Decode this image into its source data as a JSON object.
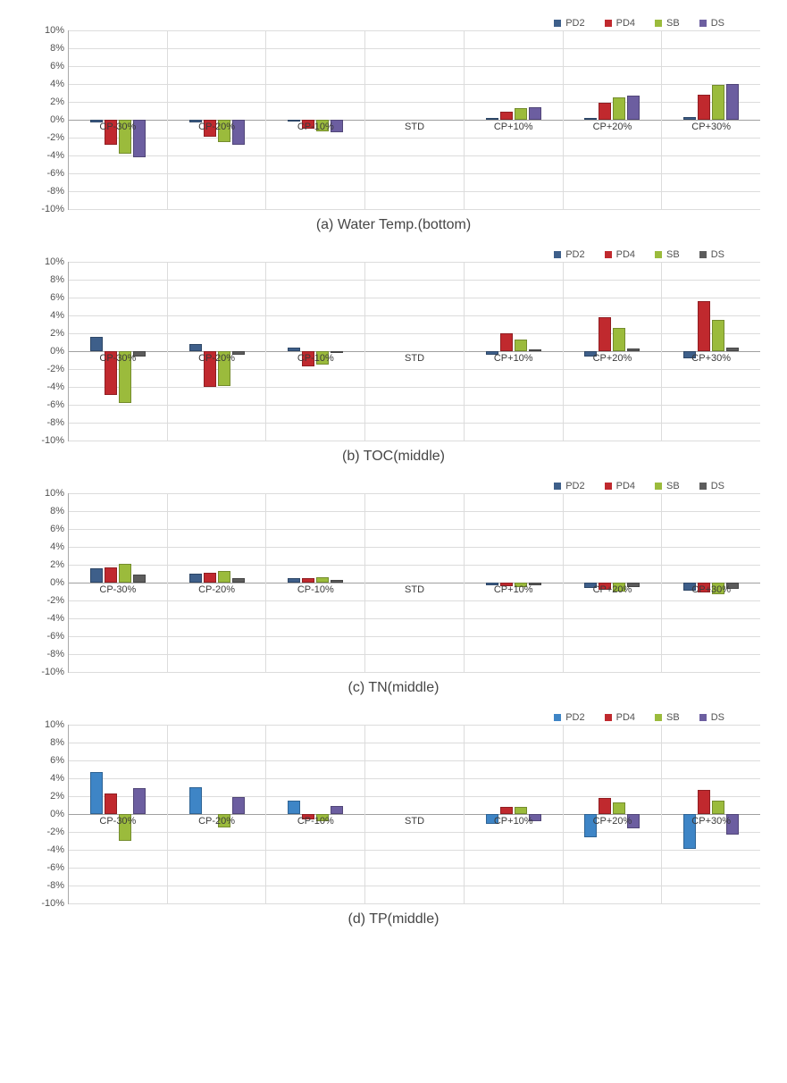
{
  "global": {
    "background_color": "#ffffff",
    "grid_color": "#dcdcdc",
    "axis_color": "#a9a9a9",
    "font_family": "Arial",
    "caption_fontsize": 16,
    "tick_fontsize": 11
  },
  "series": [
    {
      "key": "PD2",
      "label": "PD2",
      "color": "#3e5f8a"
    },
    {
      "key": "PD4",
      "label": "PD4",
      "color": "#c0292e"
    },
    {
      "key": "SB",
      "label": "SB",
      "color": "#9bbb3c"
    },
    {
      "key": "DS",
      "label": "DS",
      "color": "#6c5ea0"
    }
  ],
  "categories": [
    "CP-30%",
    "CP-20%",
    "CP-10%",
    "STD",
    "CP+10%",
    "CP+20%",
    "CP+30%"
  ],
  "y_axis": {
    "min": -10,
    "max": 10,
    "step": 2,
    "ticks": [
      "10%",
      "8%",
      "6%",
      "4%",
      "2%",
      "0%",
      "-2%",
      "-4%",
      "-6%",
      "-8%",
      "-10%"
    ]
  },
  "charts": [
    {
      "id": "a",
      "caption": "(a) Water Temp.(bottom)",
      "legend_colors_override": null,
      "data": {
        "PD2": [
          -0.3,
          -0.3,
          -0.2,
          0,
          0.1,
          0.2,
          0.3
        ],
        "PD4": [
          -2.8,
          -1.9,
          -1.0,
          0,
          0.9,
          1.9,
          2.8
        ],
        "SB": [
          -3.8,
          -2.5,
          -1.3,
          0,
          1.3,
          2.5,
          3.9
        ],
        "DS": [
          -4.2,
          -2.8,
          -1.4,
          0,
          1.4,
          2.7,
          4.0
        ]
      }
    },
    {
      "id": "b",
      "caption": "(b) TOC(middle)",
      "legend_colors_override": {
        "DS": "#5c5c5c"
      },
      "data": {
        "PD2": [
          1.6,
          0.8,
          0.4,
          0,
          -0.4,
          -0.6,
          -0.8
        ],
        "PD4": [
          -4.9,
          -4.0,
          -1.7,
          0,
          2.0,
          3.8,
          5.6
        ],
        "SB": [
          -5.8,
          -3.9,
          -1.5,
          0,
          1.3,
          2.6,
          3.5
        ],
        "DS": [
          -0.6,
          -0.4,
          -0.2,
          0,
          0.2,
          0.3,
          0.4
        ]
      }
    },
    {
      "id": "c",
      "caption": "(c) TN(middle)",
      "legend_colors_override": {
        "DS": "#5c5c5c"
      },
      "data": {
        "PD2": [
          1.6,
          1.0,
          0.5,
          0,
          -0.3,
          -0.6,
          -0.9
        ],
        "PD4": [
          1.7,
          1.1,
          0.5,
          0,
          -0.4,
          -0.8,
          -1.1
        ],
        "SB": [
          2.1,
          1.3,
          0.6,
          0,
          -0.5,
          -1.0,
          -1.3
        ],
        "DS": [
          0.9,
          0.5,
          0.3,
          0,
          -0.3,
          -0.5,
          -0.7
        ]
      }
    },
    {
      "id": "d",
      "caption": "(d) TP(middle)",
      "legend_colors_override": {
        "PD2": "#3e85c6"
      },
      "data": {
        "PD2": [
          4.7,
          3.0,
          1.5,
          0,
          -1.1,
          -2.6,
          -3.9
        ],
        "PD4": [
          2.3,
          0.0,
          -0.6,
          0,
          0.8,
          1.8,
          2.7
        ],
        "SB": [
          -3.0,
          -1.5,
          -0.8,
          0,
          0.8,
          1.3,
          1.5
        ],
        "DS": [
          2.9,
          1.9,
          0.9,
          0,
          -0.8,
          -1.6,
          -2.3
        ]
      }
    }
  ]
}
